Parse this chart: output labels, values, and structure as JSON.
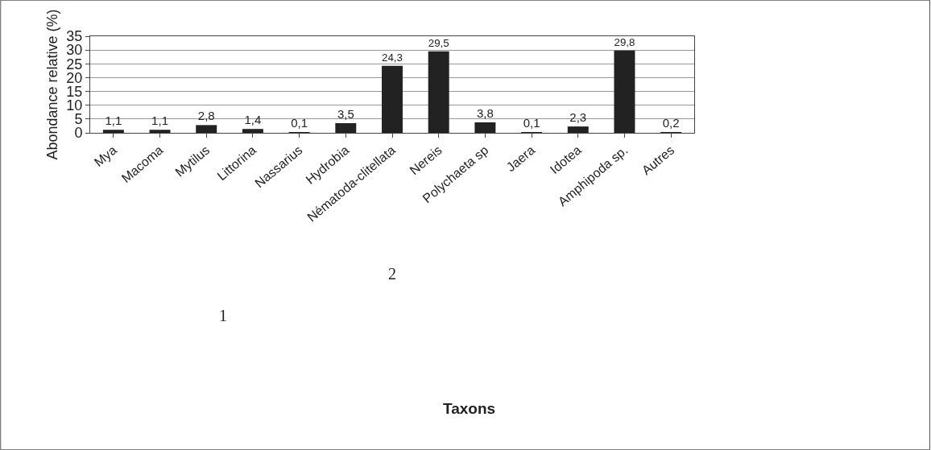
{
  "chart_data": {
    "type": "bar",
    "ylabel": "Abondance relative (%)",
    "categories": [
      "Mya",
      "Macoma",
      "Mytilus",
      "Littorina",
      "Nassarius",
      "Hydrobia",
      "Nématoda-clitellata",
      "Nereis",
      "Polychaeta sp",
      "Jaera",
      "Idotea",
      "Amphipoda sp.",
      "Autres"
    ],
    "values": [
      1.1,
      1.1,
      2.8,
      1.4,
      0.1,
      3.5,
      24.3,
      29.5,
      3.8,
      0.1,
      2.3,
      29.8,
      0.2
    ],
    "value_labels": [
      "1,1",
      "1,1",
      "2,8",
      "1,4",
      "0,1",
      "3,5",
      "24,3",
      "29,5",
      "3,8",
      "0,1",
      "2,3",
      "29,8",
      "0,2"
    ],
    "color": "#222222",
    "ylim": [
      0,
      35
    ],
    "yticks": [
      0,
      5,
      10,
      15,
      20,
      25,
      30,
      35
    ],
    "grid": "y",
    "annotations": [
      "1",
      "2",
      "Taxons"
    ]
  }
}
